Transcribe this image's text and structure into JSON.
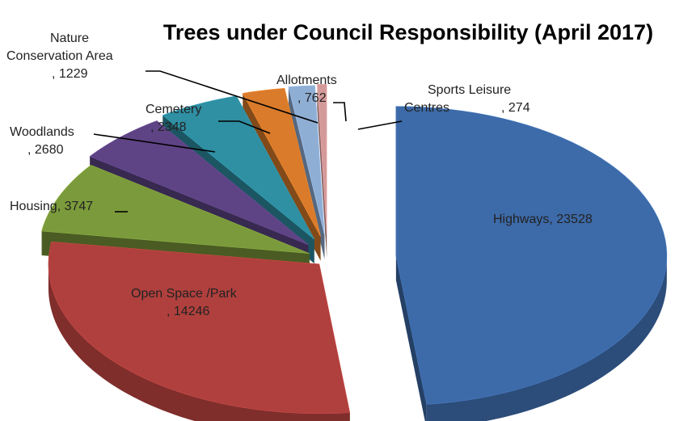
{
  "chart_data": {
    "type": "pie",
    "title": "Trees under Council Responsibility (April 2017)",
    "style": "3d-exploded",
    "series": [
      {
        "labels": [
          "Highways",
          "Open Space /Park",
          "Housing",
          "Woodlands",
          "Cemetery",
          "Nature Conservation Area",
          "Allotments",
          "Sports Leisure Centres"
        ],
        "values": [
          23528,
          14246,
          3747,
          2680,
          2348,
          1229,
          762,
          274
        ]
      }
    ],
    "slices": [
      {
        "label": "Highways",
        "value": 23528,
        "label_lines": [
          "Highways, 23528"
        ],
        "color": "#3d6aa8"
      },
      {
        "label": "Open Space /Park",
        "value": 14246,
        "label_lines": [
          "Open Space /Park",
          ", 14246"
        ],
        "color": "#b0403d"
      },
      {
        "label": "Housing",
        "value": 3747,
        "label_lines": [
          "Housing, 3747"
        ],
        "color": "#7b9a3b"
      },
      {
        "label": "Woodlands",
        "value": 2680,
        "label_lines": [
          "Woodlands",
          ", 2680"
        ],
        "color": "#5e4485"
      },
      {
        "label": "Cemetery",
        "value": 2348,
        "label_lines": [
          "Cemetery",
          ", 2348"
        ],
        "color": "#2f8fa3"
      },
      {
        "label": "Nature Conservation Area",
        "value": 1229,
        "label_lines": [
          "Nature",
          "Conservation Area",
          ", 1229"
        ],
        "color": "#d97b2a"
      },
      {
        "label": "Allotments",
        "value": 762,
        "label_lines": [
          "Allotments",
          ", 762"
        ],
        "color": "#8faed4"
      },
      {
        "label": "Sports Leisure Centres",
        "value": 274,
        "label_lines": [
          "Sports Leisure",
          "Centres",
          ", 274"
        ],
        "color": "#d49a9a"
      }
    ],
    "legend": "none"
  }
}
